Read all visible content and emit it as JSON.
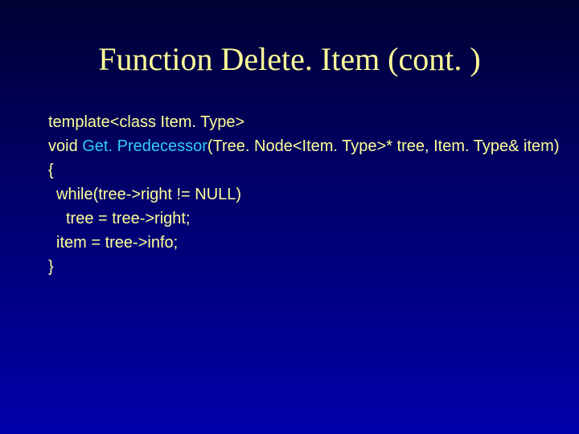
{
  "slide": {
    "title": "Function Delete. Item (cont. )",
    "code": {
      "line1": "template<class Item. Type>",
      "line2_prefix": "void ",
      "line2_fn": "Get. Predecessor",
      "line2_suffix": "(Tree. Node<Item. Type>* tree, Item. Type& item)",
      "line3": "{",
      "line4": "while(tree->right != NULL)",
      "line5": "tree = tree->right;",
      "line6": "item = tree->info;",
      "line7": "}"
    }
  },
  "colors": {
    "title_color": "#ffff99",
    "code_color": "#ffff99",
    "fn_color": "#33ccff",
    "bg_top": "#000033",
    "bg_mid": "#000066",
    "bg_bottom": "#0000aa"
  },
  "typography": {
    "title_font": "Times New Roman",
    "title_size_pt": 30,
    "code_font": "Arial",
    "code_size_pt": 15
  }
}
